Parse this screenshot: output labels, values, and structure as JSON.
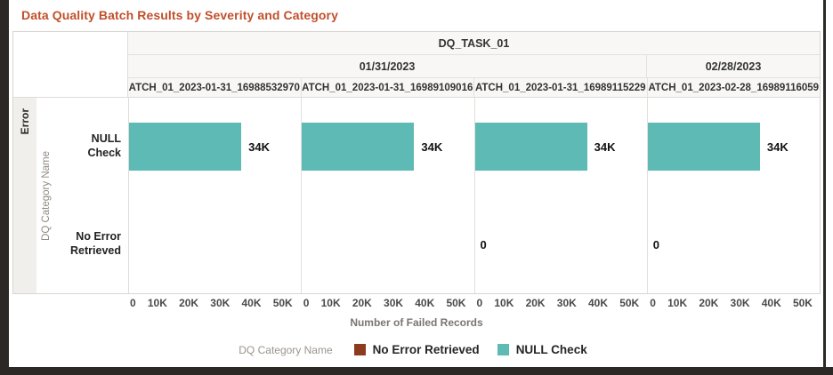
{
  "window": {
    "frame_color": "#2B2825"
  },
  "title": "Data Quality Batch Results by Severity and Category",
  "title_color": "#C14F2B",
  "chart_data": {
    "type": "bar",
    "orientation": "horizontal",
    "title": "Data Quality Batch Results by Severity and Category",
    "task_header": "DQ_TASK_01",
    "severity_row_label": "Error",
    "ylabel": "DQ Category Name",
    "xlabel": "Number of Failed Records",
    "categories": [
      "NULL Check",
      "No Error Retrieved"
    ],
    "xticks": [
      "0",
      "10K",
      "20K",
      "30K",
      "40K",
      "50K"
    ],
    "xlim": [
      0,
      50000
    ],
    "grid": false,
    "date_groups": [
      {
        "label": "01/31/2023",
        "span": 3
      },
      {
        "label": "02/28/2023",
        "span": 1
      }
    ],
    "panels": [
      {
        "batch_label": "ATCH_01_2023-01-31_16988532970",
        "date": "01/31/2023",
        "bars": [
          {
            "category": "NULL Check",
            "value": 34000,
            "display": "34K"
          },
          {
            "category": "No Error Retrieved",
            "value": null,
            "display": ""
          }
        ]
      },
      {
        "batch_label": "ATCH_01_2023-01-31_16989109016",
        "date": "01/31/2023",
        "bars": [
          {
            "category": "NULL Check",
            "value": 34000,
            "display": "34K"
          },
          {
            "category": "No Error Retrieved",
            "value": null,
            "display": ""
          }
        ]
      },
      {
        "batch_label": "ATCH_01_2023-01-31_16989115229",
        "date": "01/31/2023",
        "bars": [
          {
            "category": "NULL Check",
            "value": 34000,
            "display": "34K"
          },
          {
            "category": "No Error Retrieved",
            "value": 0,
            "display": "0"
          }
        ]
      },
      {
        "batch_label": "ATCH_01_2023-02-28_16989116059",
        "date": "02/28/2023",
        "bars": [
          {
            "category": "NULL Check",
            "value": 34000,
            "display": "34K"
          },
          {
            "category": "No Error Retrieved",
            "value": 0,
            "display": "0"
          }
        ]
      }
    ],
    "colors": {
      "NULL Check": "#5DBAB4",
      "No Error Retrieved": "#8C3B1F"
    },
    "legend": {
      "title": "DQ Category Name",
      "position": "bottom",
      "items": [
        {
          "label": "No Error Retrieved",
          "color": "#8C3B1F"
        },
        {
          "label": "NULL Check",
          "color": "#5DBAB4"
        }
      ]
    }
  }
}
